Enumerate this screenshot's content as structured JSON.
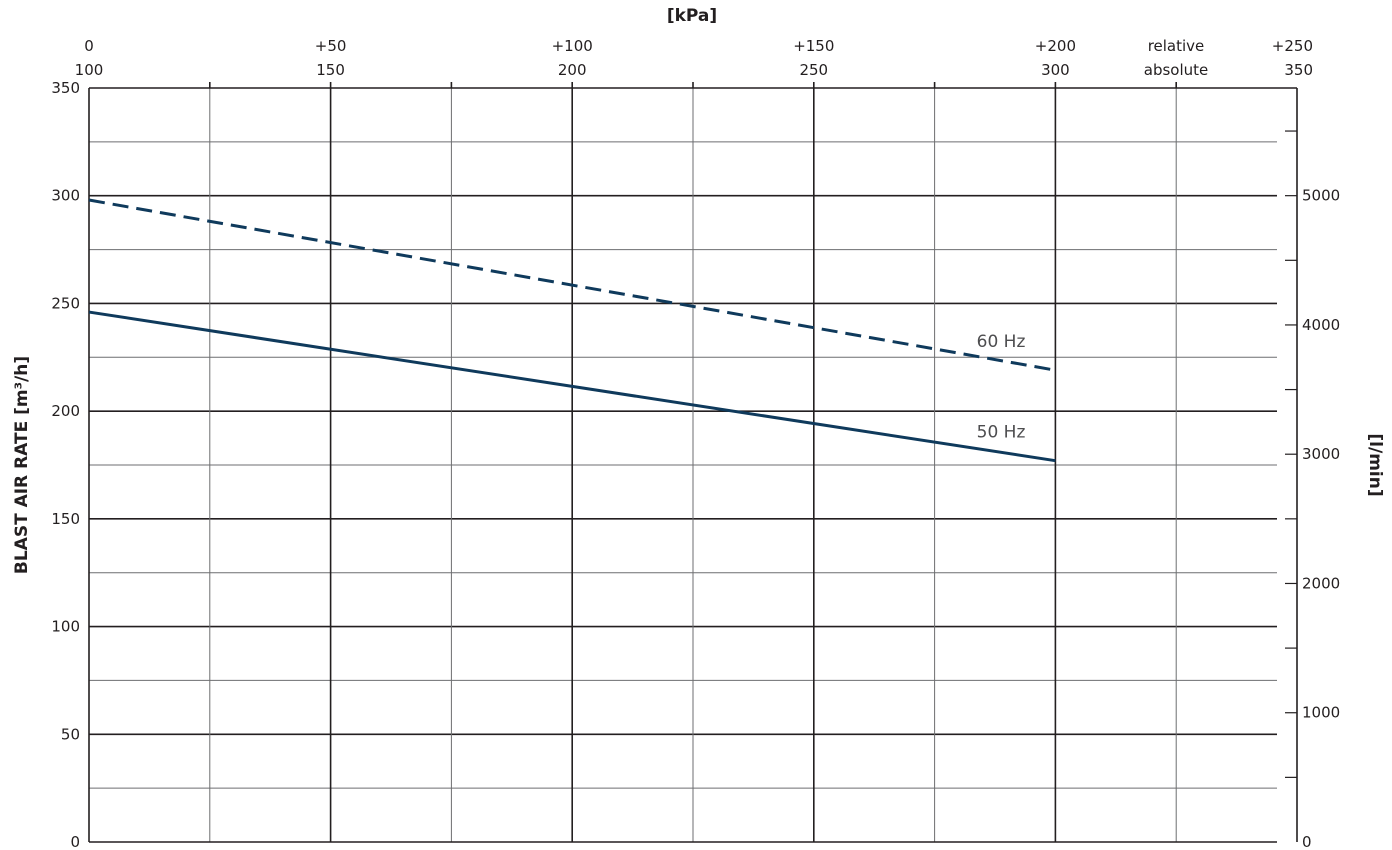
{
  "chart_data": {
    "type": "line",
    "top_axis_title": "[kPa]",
    "ylabel": "BLAST AIR RATE  [m³/h]",
    "y2label": "[l/min]",
    "x_relative_ticks": [
      "0",
      "+50",
      "+100",
      "+150",
      "+200",
      "+250"
    ],
    "x_absolute_ticks": [
      "100",
      "150",
      "200",
      "250",
      "300",
      "350"
    ],
    "relative_label": "relative",
    "absolute_label": "absolute",
    "xlim": [
      0,
      250
    ],
    "ylim": [
      0,
      350
    ],
    "y_ticks": [
      "0",
      "50",
      "100",
      "150",
      "200",
      "250",
      "300",
      "350"
    ],
    "y2lim": [
      0,
      5833
    ],
    "y2_ticks": [
      "0",
      "1000",
      "2000",
      "3000",
      "4000",
      "5000"
    ],
    "series": [
      {
        "name": "60 Hz",
        "style": "dashed",
        "x": [
          0,
          200
        ],
        "y": [
          298,
          219
        ]
      },
      {
        "name": "50 Hz",
        "style": "solid",
        "x": [
          0,
          200
        ],
        "y": [
          246,
          177
        ]
      }
    ],
    "line_color": "#0f3a5c",
    "grid": true
  }
}
